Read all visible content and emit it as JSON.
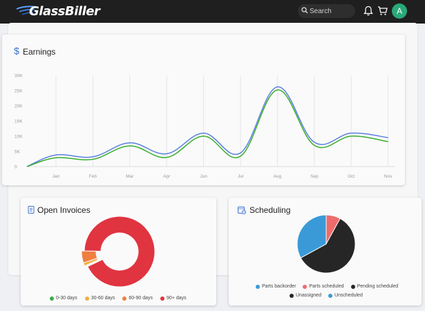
{
  "header": {
    "logo_text": "GlassBiller",
    "search_placeholder": "Search",
    "avatar_initial": "A"
  },
  "earnings": {
    "title": "Earnings",
    "icon": "dollar-icon"
  },
  "open_invoices": {
    "title": "Open Invoices",
    "icon": "document-icon",
    "legend": [
      {
        "label": "0-30 days",
        "color": "#3aad4d"
      },
      {
        "label": "30-60 days",
        "color": "#f0b040"
      },
      {
        "label": "60-90 days",
        "color": "#ef7e40"
      },
      {
        "label": "90+ days",
        "color": "#e03440"
      }
    ]
  },
  "scheduling": {
    "title": "Scheduling",
    "icon": "calendar-clock-icon",
    "legend": [
      {
        "label": "Parts backorder",
        "color": "#3a9ad8"
      },
      {
        "label": "Parts scheduled",
        "color": "#ef6b6b"
      },
      {
        "label": "Pending scheduled",
        "color": "#262626"
      },
      {
        "label": "Unassigned",
        "color": "#262626"
      },
      {
        "label": "Unscheduled",
        "color": "#3a9ad8"
      }
    ]
  },
  "chart_data": [
    {
      "type": "line",
      "categories": [
        "Jan",
        "Feb",
        "Mar",
        "Apr",
        "Jun",
        "Jul",
        "Aug",
        "Sep",
        "Oct",
        "Nov"
      ],
      "y_ticks": [
        "0",
        "5K",
        "10K",
        "15K",
        "20K",
        "25K",
        "30K"
      ],
      "ylim": [
        0,
        30000
      ],
      "grid": true,
      "series": [
        {
          "color": "#5b7fe0",
          "start": 0,
          "values": [
            3800,
            3200,
            7800,
            4200,
            11000,
            4500,
            26200,
            8000,
            11000,
            9500
          ]
        },
        {
          "color": "#3aad2e",
          "start": 0,
          "values": [
            2900,
            2400,
            6800,
            3000,
            10000,
            3400,
            25200,
            7000,
            10000,
            8200
          ]
        }
      ]
    },
    {
      "type": "pie",
      "style": "donut",
      "labels": [
        "0-30 days",
        "30-60 days",
        "60-90 days",
        "90+ days"
      ],
      "values": [
        0.3,
        1.5,
        5.5,
        92.7
      ],
      "colors": [
        "#3aad4d",
        "#f0b040",
        "#ef7e40",
        "#e03440"
      ]
    },
    {
      "type": "pie",
      "labels": [
        "Parts backorder",
        "Parts scheduled",
        "Pending scheduled",
        "Unassigned",
        "Unscheduled"
      ],
      "values": [
        33,
        8,
        59,
        0,
        0
      ],
      "colors": [
        "#3a9ad8",
        "#ef6b6b",
        "#262626",
        "#262626",
        "#3a9ad8"
      ]
    }
  ]
}
